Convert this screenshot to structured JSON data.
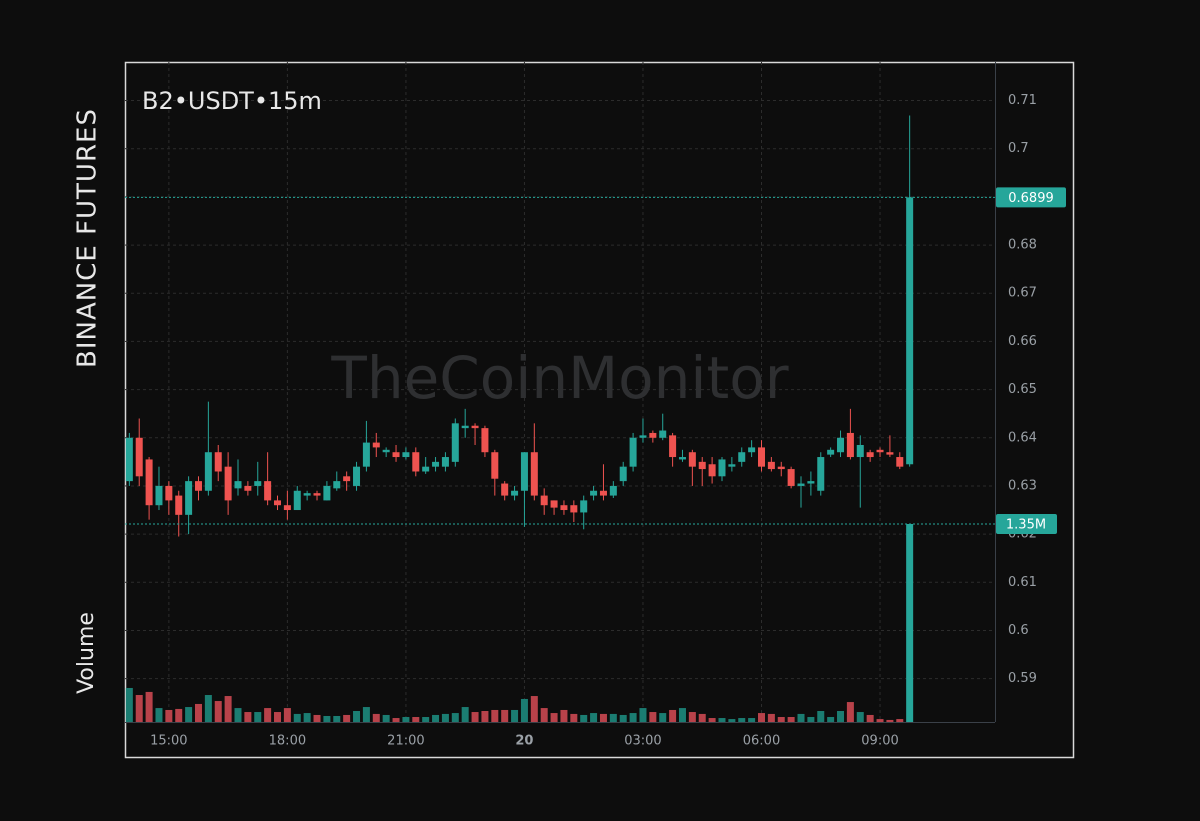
{
  "chart_data": {
    "type": "candlestick",
    "title": "B2•USDT•15m",
    "side_label": "BINANCE FUTURES",
    "volume_label": "Volume",
    "watermark": "TheCoinMonitor",
    "last_volume_label": "1.35M",
    "up_color": "#26a69a",
    "down_color": "#ef5350",
    "volume_up_color": "#1b7d72",
    "volume_down_color": "#b8424a",
    "grid": true,
    "xlim": [
      13.89,
      35.91
    ],
    "xticks": [
      {
        "value": 15,
        "label": "15:00"
      },
      {
        "value": 18,
        "label": "18:00"
      },
      {
        "value": 21,
        "label": "21:00"
      },
      {
        "value": 24,
        "label": "20"
      },
      {
        "value": 27,
        "label": "03:00"
      },
      {
        "value": 30,
        "label": "06:00"
      },
      {
        "value": 33,
        "label": "09:00"
      }
    ],
    "ylim": [
      0.581,
      0.718
    ],
    "yticks": [
      0.59,
      0.6,
      0.61,
      0.62,
      0.63,
      0.64,
      0.65,
      0.66,
      0.67,
      0.68,
      0.69,
      0.7,
      0.71
    ],
    "x": [
      14,
      14.25,
      14.5,
      14.75,
      15,
      15.25,
      15.5,
      15.75,
      16,
      16.25,
      16.5,
      16.75,
      17,
      17.25,
      17.5,
      17.75,
      18,
      18.25,
      18.5,
      18.75,
      19,
      19.25,
      19.5,
      19.75,
      20,
      20.25,
      20.5,
      20.75,
      21,
      21.25,
      21.5,
      21.75,
      22,
      22.25,
      22.5,
      22.75,
      23,
      23.25,
      23.5,
      23.75,
      24,
      24.25,
      24.5,
      24.75,
      25,
      25.25,
      25.5,
      25.75,
      26,
      26.25,
      26.5,
      26.75,
      27,
      27.25,
      27.5,
      27.75,
      28,
      28.25,
      28.5,
      28.75,
      29,
      29.25,
      29.5,
      29.75,
      30,
      30.25,
      30.5,
      30.75,
      31,
      31.25,
      31.5,
      31.75,
      32,
      32.25,
      32.5,
      32.75,
      33,
      33.25,
      33.5,
      33.75
    ],
    "open": [
      0.631,
      0.64,
      0.6355,
      0.626,
      0.63,
      0.628,
      0.624,
      0.631,
      0.629,
      0.637,
      0.634,
      0.6295,
      0.63,
      0.63,
      0.631,
      0.627,
      0.626,
      0.625,
      0.628,
      0.6285,
      0.627,
      0.6295,
      0.632,
      0.63,
      0.634,
      0.639,
      0.637,
      0.637,
      0.636,
      0.637,
      0.633,
      0.634,
      0.634,
      0.635,
      0.642,
      0.6425,
      0.642,
      0.637,
      0.6305,
      0.628,
      0.629,
      0.637,
      0.628,
      0.627,
      0.626,
      0.626,
      0.6245,
      0.628,
      0.629,
      0.628,
      0.631,
      0.634,
      0.64,
      0.641,
      0.64,
      0.6405,
      0.6355,
      0.637,
      0.635,
      0.6345,
      0.632,
      0.634,
      0.635,
      0.637,
      0.638,
      0.635,
      0.634,
      0.6335,
      0.63,
      0.6305,
      0.629,
      0.6365,
      0.637,
      0.641,
      0.636,
      0.637,
      0.6375,
      0.637,
      0.636,
      0.6345
    ],
    "high": [
      0.641,
      0.644,
      0.636,
      0.634,
      0.631,
      0.629,
      0.632,
      0.632,
      0.6475,
      0.6385,
      0.637,
      0.6355,
      0.631,
      0.635,
      0.637,
      0.628,
      0.629,
      0.63,
      0.629,
      0.629,
      0.631,
      0.633,
      0.633,
      0.635,
      0.6435,
      0.641,
      0.638,
      0.6385,
      0.638,
      0.638,
      0.636,
      0.636,
      0.637,
      0.644,
      0.646,
      0.643,
      0.6425,
      0.6375,
      0.631,
      0.63,
      0.637,
      0.643,
      0.6295,
      0.627,
      0.627,
      0.627,
      0.628,
      0.63,
      0.6345,
      0.631,
      0.635,
      0.641,
      0.644,
      0.6415,
      0.645,
      0.641,
      0.6375,
      0.6375,
      0.636,
      0.636,
      0.636,
      0.636,
      0.638,
      0.6395,
      0.6395,
      0.636,
      0.635,
      0.634,
      0.632,
      0.633,
      0.637,
      0.638,
      0.6415,
      0.646,
      0.6405,
      0.6375,
      0.638,
      0.6405,
      0.637,
      0.7069
    ],
    "low": [
      0.63,
      0.63,
      0.623,
      0.625,
      0.624,
      0.6195,
      0.62,
      0.627,
      0.628,
      0.631,
      0.624,
      0.628,
      0.628,
      0.628,
      0.626,
      0.625,
      0.623,
      0.625,
      0.627,
      0.627,
      0.627,
      0.629,
      0.629,
      0.629,
      0.633,
      0.636,
      0.636,
      0.635,
      0.6355,
      0.632,
      0.6325,
      0.633,
      0.633,
      0.634,
      0.64,
      0.6385,
      0.636,
      0.628,
      0.627,
      0.627,
      0.6215,
      0.627,
      0.624,
      0.624,
      0.624,
      0.6225,
      0.621,
      0.627,
      0.627,
      0.6275,
      0.63,
      0.633,
      0.639,
      0.639,
      0.6395,
      0.634,
      0.635,
      0.63,
      0.63,
      0.6305,
      0.631,
      0.633,
      0.634,
      0.636,
      0.633,
      0.633,
      0.632,
      0.6295,
      0.6255,
      0.628,
      0.628,
      0.636,
      0.636,
      0.6355,
      0.6255,
      0.635,
      0.636,
      0.636,
      0.6335,
      0.634
    ],
    "close": [
      0.64,
      0.632,
      0.626,
      0.63,
      0.627,
      0.624,
      0.631,
      0.629,
      0.637,
      0.633,
      0.627,
      0.631,
      0.629,
      0.631,
      0.627,
      0.626,
      0.625,
      0.629,
      0.6285,
      0.628,
      0.63,
      0.631,
      0.631,
      0.634,
      0.639,
      0.638,
      0.6375,
      0.636,
      0.637,
      0.633,
      0.634,
      0.635,
      0.636,
      0.643,
      0.6425,
      0.642,
      0.637,
      0.6315,
      0.628,
      0.629,
      0.637,
      0.628,
      0.626,
      0.6255,
      0.625,
      0.6245,
      0.627,
      0.629,
      0.628,
      0.63,
      0.634,
      0.64,
      0.6405,
      0.64,
      0.6415,
      0.636,
      0.636,
      0.634,
      0.6335,
      0.632,
      0.6355,
      0.6345,
      0.637,
      0.638,
      0.634,
      0.6335,
      0.6335,
      0.63,
      0.6305,
      0.631,
      0.636,
      0.6375,
      0.64,
      0.636,
      0.6385,
      0.636,
      0.637,
      0.6365,
      0.634,
      0.6899
    ],
    "volume": [
      232000,
      184000,
      205000,
      95000,
      82000,
      89000,
      102000,
      123000,
      184000,
      143000,
      177000,
      95000,
      68000,
      68000,
      95000,
      68000,
      95000,
      55000,
      61000,
      48000,
      41000,
      41000,
      48000,
      75000,
      102000,
      55000,
      48000,
      27000,
      34000,
      34000,
      34000,
      48000,
      55000,
      61000,
      102000,
      68000,
      75000,
      82000,
      82000,
      82000,
      157000,
      177000,
      95000,
      61000,
      82000,
      55000,
      48000,
      61000,
      55000,
      55000,
      48000,
      61000,
      95000,
      68000,
      61000,
      82000,
      95000,
      68000,
      55000,
      27000,
      27000,
      20000,
      27000,
      27000,
      61000,
      55000,
      34000,
      34000,
      55000,
      34000,
      75000,
      34000,
      75000,
      136000,
      68000,
      48000,
      20000,
      14000,
      20000,
      1350000
    ]
  }
}
